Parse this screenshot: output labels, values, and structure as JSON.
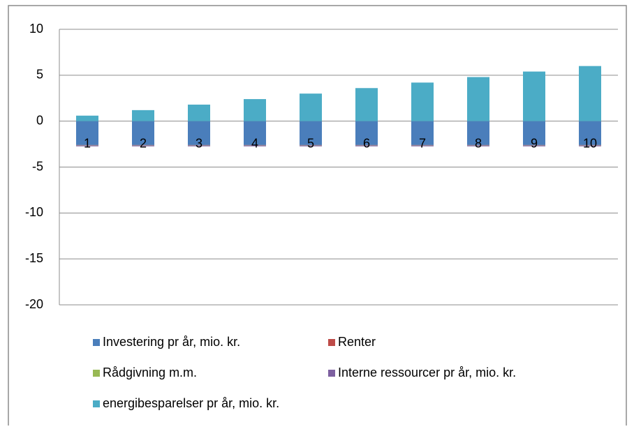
{
  "chart_data": {
    "type": "stacked_bar",
    "categories": [
      "1",
      "2",
      "3",
      "4",
      "5",
      "6",
      "7",
      "8",
      "9",
      "10"
    ],
    "series": [
      {
        "name": "Investering pr år, mio. kr.",
        "color": "#4a7ebb",
        "values": [
          -2.6,
          -2.6,
          -2.6,
          -2.6,
          -2.6,
          -2.6,
          -2.6,
          -2.6,
          -2.6,
          -2.6
        ]
      },
      {
        "name": "Renter",
        "color": "#be4b48",
        "values": [
          -0.02,
          -0.02,
          -0.02,
          -0.02,
          -0.02,
          -0.02,
          -0.02,
          -0.02,
          -0.02,
          -0.02
        ]
      },
      {
        "name": "Rådgivning m.m.",
        "color": "#98b954",
        "values": [
          -0.02,
          -0.02,
          -0.02,
          -0.02,
          -0.02,
          -0.02,
          -0.02,
          -0.02,
          -0.02,
          -0.02
        ]
      },
      {
        "name": "Interne ressourcer pr år, mio. kr.",
        "color": "#7d60a0",
        "values": [
          -0.1,
          -0.1,
          -0.1,
          -0.1,
          -0.1,
          -0.1,
          -0.1,
          -0.1,
          -0.1,
          -0.1
        ]
      },
      {
        "name": "energibesparelser pr år, mio. kr.",
        "color": "#4bacc6",
        "values": [
          0.6,
          1.2,
          1.8,
          2.4,
          3.0,
          3.6,
          4.2,
          4.8,
          5.4,
          6.0
        ]
      }
    ],
    "ylim": [
      -20,
      10
    ],
    "yticks": [
      -20,
      -15,
      -10,
      -5,
      0,
      5,
      10
    ],
    "grid": true
  }
}
